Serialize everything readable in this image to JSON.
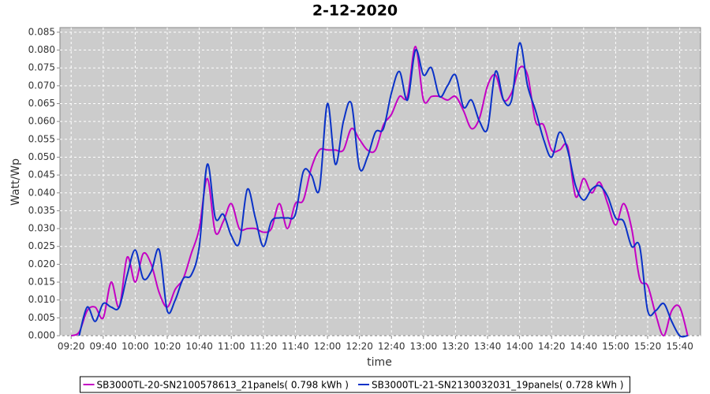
{
  "chart_data": {
    "type": "line",
    "title": "2-12-2020",
    "x_label": "time",
    "y_label": "Watt/Wp",
    "x": [
      "09:20",
      "09:25",
      "09:30",
      "09:35",
      "09:40",
      "09:45",
      "09:50",
      "09:55",
      "10:00",
      "10:05",
      "10:10",
      "10:15",
      "10:20",
      "10:25",
      "10:30",
      "10:35",
      "10:40",
      "10:45",
      "10:50",
      "10:55",
      "11:00",
      "11:05",
      "11:10",
      "11:15",
      "11:20",
      "11:25",
      "11:30",
      "11:35",
      "11:40",
      "11:45",
      "11:50",
      "11:55",
      "12:00",
      "12:05",
      "12:10",
      "12:15",
      "12:20",
      "12:25",
      "12:30",
      "12:35",
      "12:40",
      "12:45",
      "12:50",
      "12:55",
      "13:00",
      "13:05",
      "13:10",
      "13:15",
      "13:20",
      "13:25",
      "13:30",
      "13:35",
      "13:40",
      "13:45",
      "13:50",
      "13:55",
      "14:00",
      "14:05",
      "14:10",
      "14:15",
      "14:20",
      "14:25",
      "14:30",
      "14:35",
      "14:40",
      "14:45",
      "14:50",
      "14:55",
      "15:00",
      "15:05",
      "15:10",
      "15:15",
      "15:20",
      "15:25",
      "15:30",
      "15:35",
      "15:40",
      "15:45"
    ],
    "series": [
      {
        "name": "SB3000TL-20-SN2100578613_21panels( 0.798 kWh )",
        "color": "#c400c4",
        "values": [
          0,
          0.001,
          0.007,
          0.008,
          0.005,
          0.015,
          0.008,
          0.022,
          0.015,
          0.023,
          0.02,
          0.012,
          0.008,
          0.013,
          0.016,
          0.023,
          0.03,
          0.044,
          0.029,
          0.032,
          0.037,
          0.03,
          0.03,
          0.03,
          0.029,
          0.03,
          0.037,
          0.03,
          0.037,
          0.038,
          0.047,
          0.052,
          0.052,
          0.052,
          0.052,
          0.058,
          0.055,
          0.052,
          0.052,
          0.059,
          0.062,
          0.067,
          0.067,
          0.081,
          0.066,
          0.067,
          0.067,
          0.066,
          0.067,
          0.063,
          0.058,
          0.061,
          0.07,
          0.073,
          0.066,
          0.068,
          0.075,
          0.073,
          0.06,
          0.059,
          0.052,
          0.052,
          0.053,
          0.039,
          0.044,
          0.04,
          0.043,
          0.037,
          0.031,
          0.037,
          0.03,
          0.016,
          0.014,
          0.006,
          0.0,
          0.007,
          0.008,
          0.0
        ]
      },
      {
        "name": "SB3000TL-21-SN2130032031_19panels( 0.728 kWh )",
        "color": "#0a32c8",
        "values": [
          null,
          0,
          0.008,
          0.004,
          0.009,
          0.008,
          0.008,
          0.017,
          0.024,
          0.016,
          0.018,
          0.024,
          0.007,
          0.01,
          0.016,
          0.017,
          0.025,
          0.048,
          0.033,
          0.034,
          0.028,
          0.026,
          0.041,
          0.033,
          0.025,
          0.032,
          0.033,
          0.033,
          0.034,
          0.046,
          0.045,
          0.041,
          0.065,
          0.048,
          0.06,
          0.065,
          0.047,
          0.05,
          0.057,
          0.058,
          0.068,
          0.074,
          0.066,
          0.08,
          0.073,
          0.075,
          0.067,
          0.07,
          0.073,
          0.064,
          0.066,
          0.06,
          0.058,
          0.074,
          0.066,
          0.066,
          0.082,
          0.07,
          0.063,
          0.055,
          0.05,
          0.057,
          0.052,
          0.042,
          0.038,
          0.041,
          0.042,
          0.039,
          0.033,
          0.032,
          0.025,
          0.025,
          0.007,
          0.007,
          0.009,
          0.004,
          0.0,
          0.0
        ]
      }
    ],
    "xlim": [
      "09:13",
      "15:53"
    ],
    "xticks": [
      "09:20",
      "09:40",
      "10:00",
      "10:20",
      "10:40",
      "11:00",
      "11:20",
      "11:40",
      "12:00",
      "12:20",
      "12:40",
      "13:00",
      "13:20",
      "13:40",
      "14:00",
      "14:20",
      "14:40",
      "15:00",
      "15:20",
      "15:40"
    ],
    "ylim": [
      0,
      0.0863
    ],
    "yticks": [
      {
        "value": 0,
        "label": "0.000"
      },
      {
        "value": 0.005,
        "label": "0.005"
      },
      {
        "value": 0.01,
        "label": "0.010"
      },
      {
        "value": 0.015,
        "label": "0.015"
      },
      {
        "value": 0.02,
        "label": "0.020"
      },
      {
        "value": 0.025,
        "label": "0.025"
      },
      {
        "value": 0.03,
        "label": "0.030"
      },
      {
        "value": 0.035,
        "label": "0.035"
      },
      {
        "value": 0.04,
        "label": "0.040"
      },
      {
        "value": 0.045,
        "label": "0.045"
      },
      {
        "value": 0.05,
        "label": "0.050"
      },
      {
        "value": 0.055,
        "label": "0.055"
      },
      {
        "value": 0.06,
        "label": "0.060"
      },
      {
        "value": 0.065,
        "label": "0.065"
      },
      {
        "value": 0.07,
        "label": "0.070"
      },
      {
        "value": 0.075,
        "label": "0.075"
      },
      {
        "value": 0.08,
        "label": "0.080"
      },
      {
        "value": 0.085,
        "label": "0.085"
      }
    ],
    "grid": true,
    "legend": "bottom",
    "background": "#cccccc"
  }
}
